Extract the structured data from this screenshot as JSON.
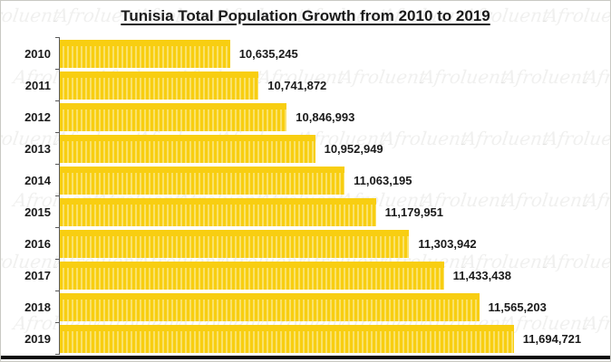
{
  "title": "Tunisia Total Population Growth from 2010 to 2019",
  "watermark": {
    "text": "Afroluent"
  },
  "colors": {
    "bar_base": "#F8CE11",
    "bar_stripe": "#FAE26B",
    "axis": "#595959",
    "text": "#1a1a1a",
    "frame_border": "#c9c9c3",
    "bottom_line": "#0a0a0a",
    "watermark": "rgba(110,105,95,0.10)"
  },
  "chart_data": {
    "type": "bar",
    "orientation": "horizontal",
    "title": "Tunisia Total Population Growth from 2010 to 2019",
    "xlabel": "",
    "ylabel": "",
    "categories": [
      "2010",
      "2011",
      "2012",
      "2013",
      "2014",
      "2015",
      "2016",
      "2017",
      "2018",
      "2019"
    ],
    "values": [
      10635245,
      10741872,
      10846993,
      10952949,
      11063195,
      11179951,
      11303942,
      11433438,
      11565203,
      11694721
    ],
    "value_labels": [
      "10,635,245",
      "10,741,872",
      "10,846,993",
      "10,952,949",
      "11,063,195",
      "11,179,951",
      "11,303,942",
      "11,433,438",
      "11,565,203",
      "11,694,721"
    ],
    "xlim": [
      10000000,
      12000000
    ],
    "grid": false,
    "legend_position": "none",
    "value_labels_shown": true
  }
}
